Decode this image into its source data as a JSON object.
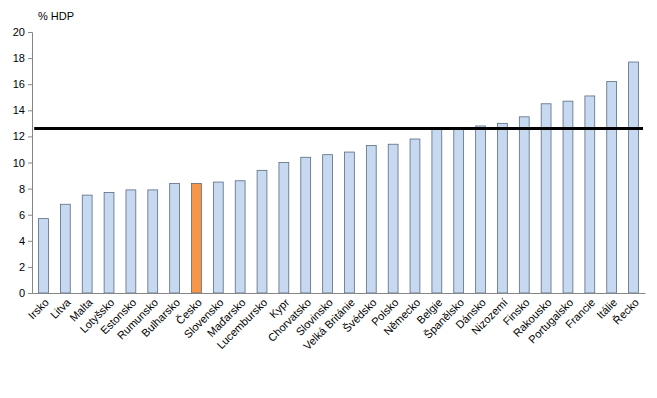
{
  "chart_data": {
    "type": "bar",
    "y_label": "% HDP",
    "categories": [
      "Irsko",
      "Litva",
      "Malta",
      "Lotyšsko",
      "Estonsko",
      "Rumunsko",
      "Bulharsko",
      "Česko",
      "Slovensko",
      "Maďarsko",
      "Lucembursko",
      "Kypr",
      "Chorvatsko",
      "Slovinsko",
      "Velká Británie",
      "Švédsko",
      "Polsko",
      "Německo",
      "Belgie",
      "Španělsko",
      "Dánsko",
      "Nizozemí",
      "Finsko",
      "Rakousko",
      "Portugalsko",
      "Francie",
      "Itálie",
      "Řecko"
    ],
    "values": [
      5.7,
      6.8,
      7.5,
      7.7,
      7.9,
      7.9,
      8.4,
      8.4,
      8.5,
      8.6,
      9.4,
      10.0,
      10.4,
      10.6,
      10.8,
      11.3,
      11.4,
      11.8,
      12.6,
      12.6,
      12.8,
      13.0,
      13.5,
      14.5,
      14.7,
      15.1,
      16.2,
      17.7
    ],
    "colors": [
      "#c6d9f1",
      "#c6d9f1",
      "#c6d9f1",
      "#c6d9f1",
      "#c6d9f1",
      "#c6d9f1",
      "#c6d9f1",
      "#f79646",
      "#c6d9f1",
      "#c6d9f1",
      "#c6d9f1",
      "#c6d9f1",
      "#c6d9f1",
      "#c6d9f1",
      "#c6d9f1",
      "#c6d9f1",
      "#c6d9f1",
      "#c6d9f1",
      "#c6d9f1",
      "#c6d9f1",
      "#c6d9f1",
      "#c6d9f1",
      "#c6d9f1",
      "#c6d9f1",
      "#c6d9f1",
      "#c6d9f1",
      "#c6d9f1",
      "#c6d9f1"
    ],
    "reference_value": 12.6,
    "ylim": [
      0,
      20
    ],
    "yticks": [
      0,
      2,
      4,
      6,
      8,
      10,
      12,
      14,
      16,
      18,
      20
    ],
    "grid": false
  }
}
